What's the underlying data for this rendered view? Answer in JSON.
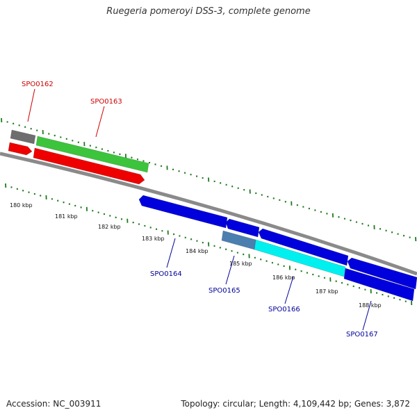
{
  "title": "Ruegeria pomeroyi DSS-3, complete genome",
  "footer": {
    "accession": "Accession: NC_003911",
    "summary": "Topology: circular; Length: 4,109,442 bp; Genes: 3,872"
  },
  "colors": {
    "backbone": "#8a8a8a",
    "tick": "#1e7a1e",
    "label_forward": "#cc0000",
    "label_reverse": "#000099"
  },
  "scale": {
    "unit": "kbp",
    "labels": [
      "180 kbp",
      "181 kbp",
      "182 kbp",
      "183 kbp",
      "184 kbp",
      "185 kbp",
      "186 kbp",
      "187 kbp",
      "188 kbp"
    ]
  },
  "gene_labels": [
    {
      "text": "SPO0162",
      "strand": "forward"
    },
    {
      "text": "SPO0163",
      "strand": "forward"
    },
    {
      "text": "SPO0164",
      "strand": "reverse"
    },
    {
      "text": "SPO0165",
      "strand": "reverse"
    },
    {
      "text": "SPO0166",
      "strand": "reverse"
    },
    {
      "text": "SPO0167",
      "strand": "reverse"
    }
  ],
  "features": [
    {
      "name": "gray-feature",
      "color": "#6e6e6e"
    },
    {
      "name": "green-feature",
      "color": "#3cc43c"
    },
    {
      "name": "red-gene-small",
      "color": "#ee0000"
    },
    {
      "name": "red-gene-large",
      "color": "#ee0000"
    },
    {
      "name": "blue-gene-1",
      "color": "#0000dd"
    },
    {
      "name": "blue-gene-2",
      "color": "#0000dd"
    },
    {
      "name": "blue-gene-3",
      "color": "#0000dd"
    },
    {
      "name": "blue-gene-4",
      "color": "#0000dd"
    },
    {
      "name": "steel-feature",
      "color": "#4a7fb0"
    },
    {
      "name": "cyan-feature",
      "color": "#00f0f0"
    },
    {
      "name": "blue-gene-5",
      "color": "#0000dd"
    }
  ]
}
